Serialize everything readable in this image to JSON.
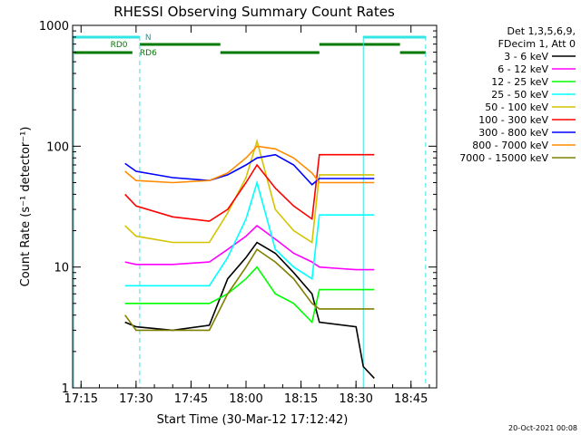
{
  "chart_data": {
    "type": "line",
    "title": "RHESSI Observing Summary Count Rates",
    "xlabel": "Start Time (30-Mar-12 17:12:42)",
    "ylabel": "Count Rate (s⁻¹ detector⁻¹)",
    "yscale": "log",
    "ylim": [
      1,
      1000
    ],
    "xlim": [
      "17:12:42",
      "18:52:00"
    ],
    "x_ticks": [
      "17:15",
      "17:30",
      "17:45",
      "18:00",
      "18:15",
      "18:30",
      "18:45"
    ],
    "y_ticks": [
      "1",
      "10",
      "100",
      "1000"
    ],
    "legend_header": [
      "Det 1,3,5,6,9,",
      "FDecim 1, Att 0"
    ],
    "legend_position": "right",
    "timestamp": "20-Oct-2021 00:08",
    "flag_labels": [
      "N",
      "RD0",
      "RD6"
    ],
    "series": [
      {
        "name": "3 - 6 keV",
        "color": "#000000",
        "x": [
          "17:27",
          "17:30",
          "17:40",
          "17:50",
          "17:55",
          "18:00",
          "18:03",
          "18:08",
          "18:13",
          "18:18",
          "18:20",
          "18:30",
          "18:32",
          "18:35"
        ],
        "y": [
          3.5,
          3.2,
          3.0,
          3.3,
          8,
          12,
          16,
          13,
          9,
          6,
          3.5,
          3.2,
          1.5,
          1.2
        ]
      },
      {
        "name": "6 - 12 keV",
        "color": "#ff00ff",
        "x": [
          "17:27",
          "17:30",
          "17:40",
          "17:50",
          "17:55",
          "18:00",
          "18:03",
          "18:08",
          "18:13",
          "18:18",
          "18:20",
          "18:30",
          "18:35"
        ],
        "y": [
          11,
          10.5,
          10.5,
          11,
          14,
          18,
          22,
          17,
          13,
          11,
          10,
          9.5,
          9.5
        ]
      },
      {
        "name": "12 - 25 keV",
        "color": "#00ff00",
        "x": [
          "17:27",
          "17:30",
          "17:40",
          "17:50",
          "17:55",
          "18:00",
          "18:03",
          "18:08",
          "18:13",
          "18:18",
          "18:20",
          "18:30",
          "18:35"
        ],
        "y": [
          5,
          5,
          5,
          5,
          6,
          8,
          10,
          6,
          5,
          3.5,
          6.5,
          6.5,
          6.5
        ]
      },
      {
        "name": "25 - 50 keV",
        "color": "#00ffff",
        "x": [
          "17:27",
          "17:30",
          "17:40",
          "17:50",
          "17:55",
          "18:00",
          "18:03",
          "18:08",
          "18:13",
          "18:18",
          "18:20",
          "18:30",
          "18:35"
        ],
        "y": [
          7,
          7,
          7,
          7,
          12,
          25,
          50,
          14,
          10,
          8,
          27,
          27,
          27
        ]
      },
      {
        "name": "50 - 100 keV",
        "color": "#d4c400",
        "x": [
          "17:27",
          "17:30",
          "17:40",
          "17:50",
          "17:55",
          "18:00",
          "18:03",
          "18:08",
          "18:13",
          "18:18",
          "18:20",
          "18:30",
          "18:35"
        ],
        "y": [
          22,
          18,
          16,
          16,
          28,
          55,
          110,
          30,
          20,
          16,
          58,
          58,
          58
        ]
      },
      {
        "name": "100 - 300 keV",
        "color": "#ff0000",
        "x": [
          "17:27",
          "17:30",
          "17:40",
          "17:50",
          "17:55",
          "18:00",
          "18:03",
          "18:08",
          "18:13",
          "18:18",
          "18:20",
          "18:30",
          "18:35"
        ],
        "y": [
          40,
          32,
          26,
          24,
          30,
          50,
          70,
          45,
          32,
          25,
          85,
          85,
          85
        ]
      },
      {
        "name": "300 - 800 keV",
        "color": "#0000ff",
        "x": [
          "17:27",
          "17:30",
          "17:40",
          "17:50",
          "17:55",
          "18:00",
          "18:03",
          "18:08",
          "18:13",
          "18:18",
          "18:20",
          "18:30",
          "18:35"
        ],
        "y": [
          72,
          62,
          55,
          52,
          58,
          70,
          80,
          85,
          70,
          48,
          54,
          54,
          54
        ]
      },
      {
        "name": "800 - 7000 keV",
        "color": "#ff8c00",
        "x": [
          "17:27",
          "17:30",
          "17:40",
          "17:50",
          "17:55",
          "18:00",
          "18:03",
          "18:08",
          "18:13",
          "18:18",
          "18:20",
          "18:30",
          "18:35"
        ],
        "y": [
          62,
          52,
          50,
          52,
          60,
          80,
          100,
          95,
          80,
          60,
          50,
          50,
          50
        ]
      },
      {
        "name": "7000 - 15000 keV",
        "color": "#808000",
        "x": [
          "17:27",
          "17:30",
          "17:40",
          "17:50",
          "17:55",
          "18:00",
          "18:03",
          "18:08",
          "18:13",
          "18:18",
          "18:20",
          "18:30",
          "18:35"
        ],
        "y": [
          4,
          3,
          3,
          3,
          6,
          10,
          14,
          11,
          8,
          5,
          4.5,
          4.5,
          4.5
        ]
      }
    ]
  }
}
